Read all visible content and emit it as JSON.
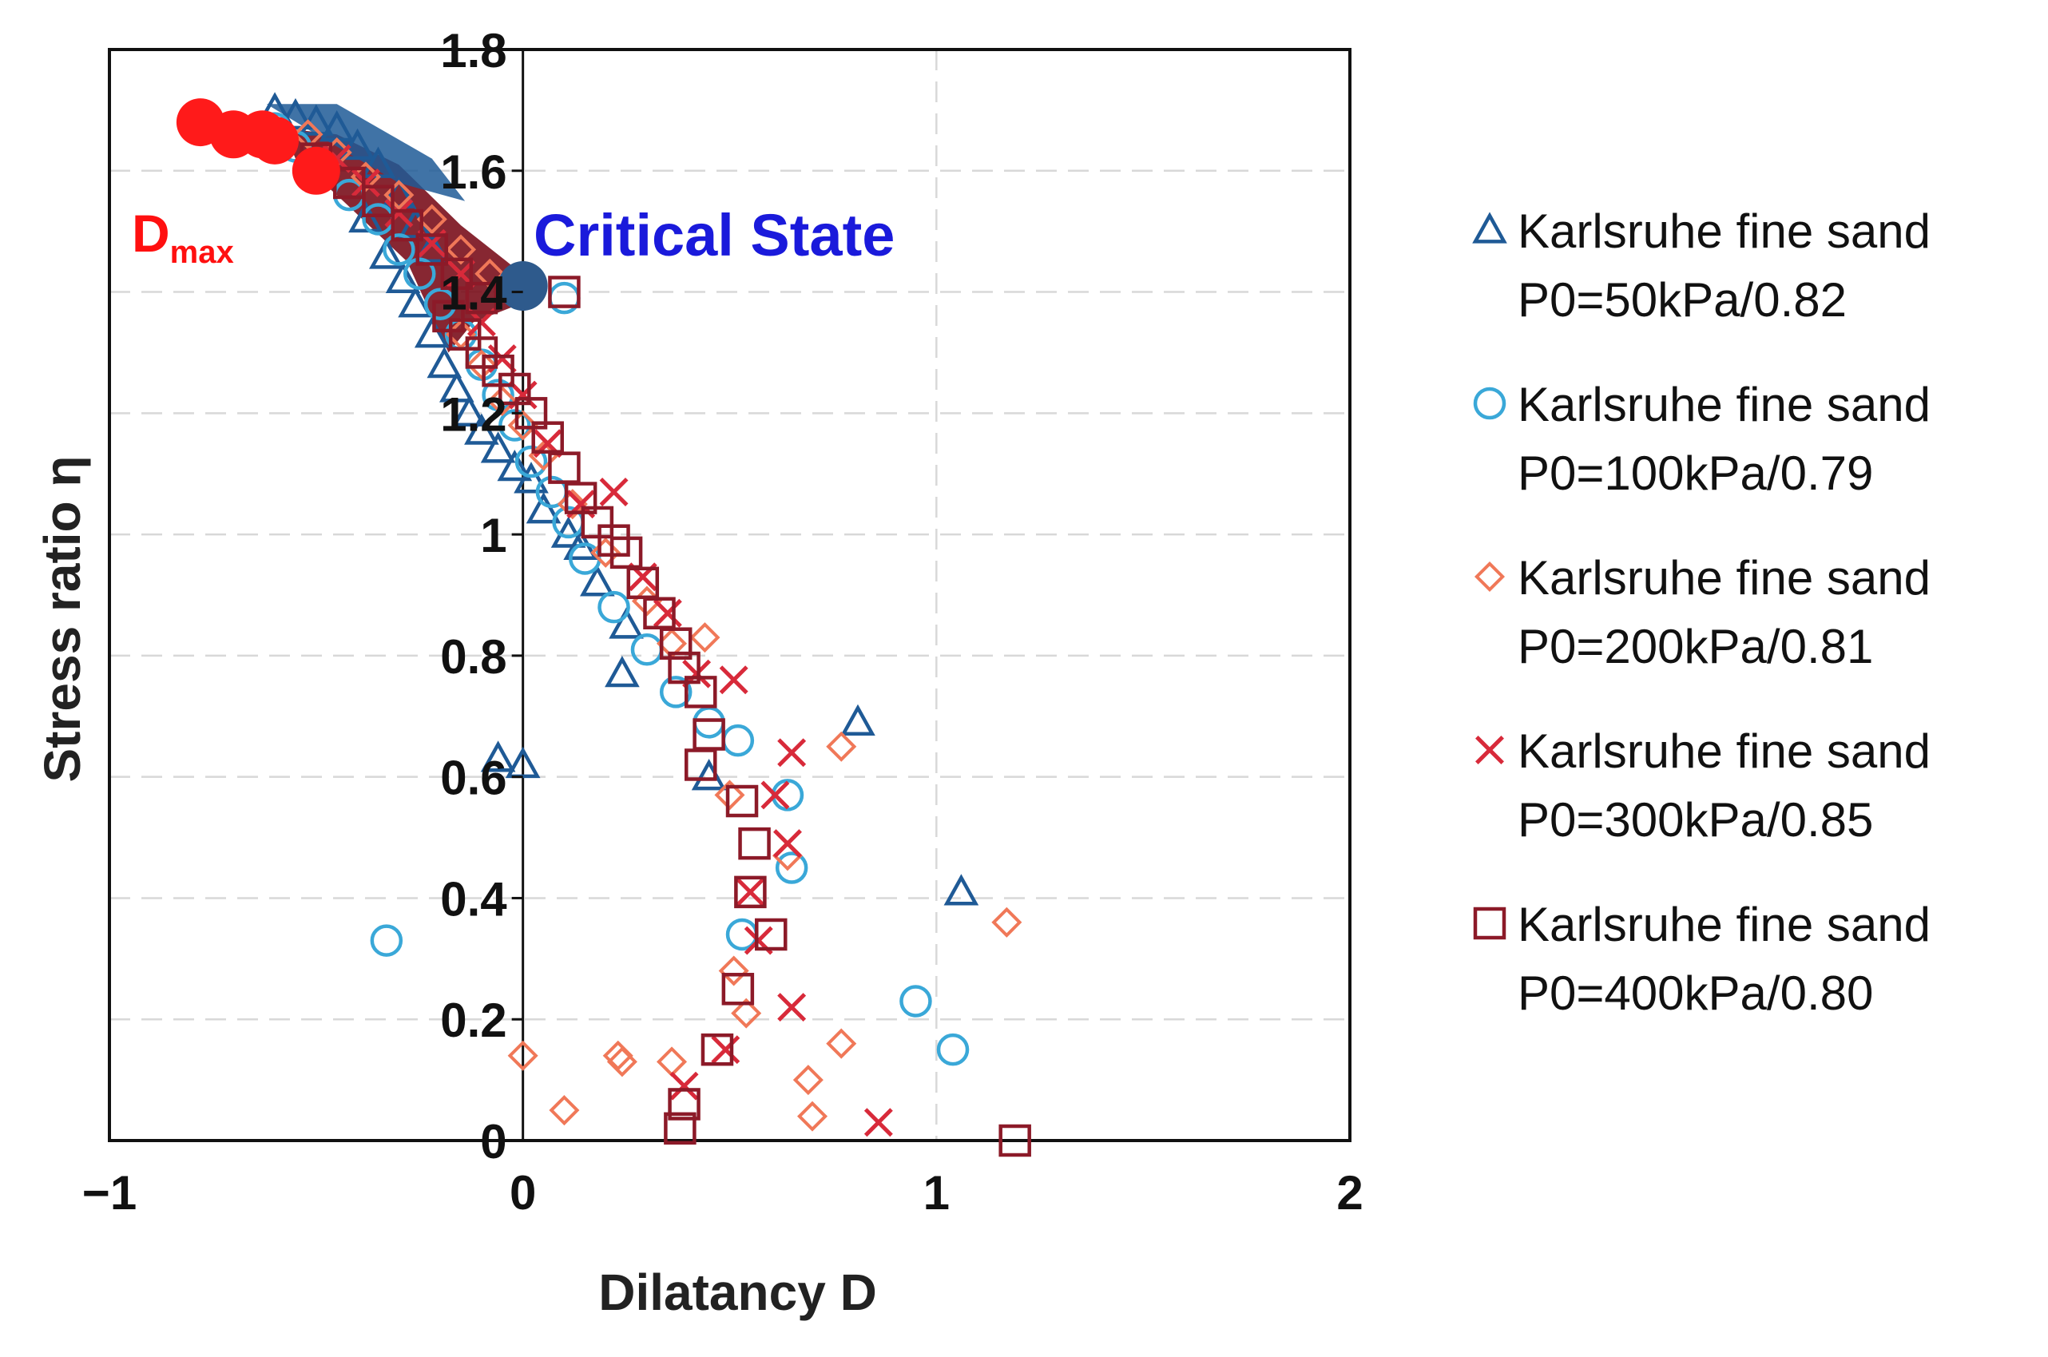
{
  "chart_data": {
    "type": "scatter",
    "title": "",
    "xlabel": "Dilatancy D",
    "ylabel": "Stress ratio η",
    "xlim": [
      -1,
      2
    ],
    "ylim": [
      0,
      1.8
    ],
    "x_ticks": [
      -1,
      0,
      1,
      2
    ],
    "x_tick_labels": [
      "−1",
      "0",
      "1",
      "2"
    ],
    "y_ticks": [
      0,
      0.2,
      0.4,
      0.6,
      0.8,
      1,
      1.2,
      1.4,
      1.6,
      1.8
    ],
    "y_tick_labels": [
      "0",
      "0.2",
      "0.4",
      "0.6",
      "0.8",
      "1",
      "1.2",
      "1.4",
      "1.6",
      "1.8"
    ],
    "grid": "dashed vertical and horizontal at ticks",
    "legend_position": "right",
    "annotations": [
      {
        "label": "D",
        "subscript": "max",
        "color": "#ff1010"
      },
      {
        "label": "Critical State",
        "color": "#1a1adb"
      }
    ],
    "highlight_points": [
      {
        "name": "Dmax",
        "color": "#ff1a1a",
        "points": [
          [
            -0.78,
            1.68
          ],
          [
            -0.7,
            1.66
          ],
          [
            -0.63,
            1.66
          ],
          [
            -0.6,
            1.65
          ],
          [
            -0.5,
            1.6
          ]
        ]
      },
      {
        "name": "Critical State",
        "color": "#2e5a8c",
        "points": [
          [
            0.0,
            1.41
          ]
        ]
      }
    ],
    "series": [
      {
        "name": "Karlsruhe fine sand",
        "condition": "P0=50kPa/0.82",
        "marker": "triangle",
        "color": "#1f5a96",
        "points": [
          [
            -0.6,
            1.7
          ],
          [
            -0.55,
            1.69
          ],
          [
            -0.5,
            1.68
          ],
          [
            -0.45,
            1.67
          ],
          [
            -0.4,
            1.64
          ],
          [
            -0.35,
            1.61
          ],
          [
            -0.3,
            1.56
          ],
          [
            -0.26,
            1.51
          ],
          [
            -0.22,
            1.47
          ],
          [
            -0.38,
            1.52
          ],
          [
            -0.33,
            1.46
          ],
          [
            -0.29,
            1.42
          ],
          [
            -0.26,
            1.38
          ],
          [
            -0.22,
            1.33
          ],
          [
            -0.19,
            1.28
          ],
          [
            -0.16,
            1.24
          ],
          [
            -0.13,
            1.2
          ],
          [
            -0.1,
            1.17
          ],
          [
            -0.06,
            1.14
          ],
          [
            -0.02,
            1.11
          ],
          [
            0.02,
            1.09
          ],
          [
            0.05,
            1.04
          ],
          [
            0.11,
            1.0
          ],
          [
            0.14,
            0.98
          ],
          [
            0.18,
            0.92
          ],
          [
            0.25,
            0.85
          ],
          [
            0.24,
            0.77
          ],
          [
            -0.06,
            0.63
          ],
          [
            0.0,
            0.62
          ],
          [
            0.45,
            0.6
          ],
          [
            0.81,
            0.69
          ],
          [
            1.06,
            0.41
          ]
        ]
      },
      {
        "name": "Karlsruhe fine sand",
        "condition": "P0=100kPa/0.79",
        "marker": "circle",
        "color": "#3aa8d8",
        "points": [
          [
            -0.6,
            1.67
          ],
          [
            -0.55,
            1.64
          ],
          [
            -0.5,
            1.6
          ],
          [
            -0.42,
            1.56
          ],
          [
            -0.35,
            1.52
          ],
          [
            -0.3,
            1.47
          ],
          [
            -0.25,
            1.43
          ],
          [
            -0.2,
            1.38
          ],
          [
            -0.15,
            1.33
          ],
          [
            -0.1,
            1.28
          ],
          [
            -0.06,
            1.23
          ],
          [
            -0.02,
            1.18
          ],
          [
            0.02,
            1.12
          ],
          [
            0.07,
            1.07
          ],
          [
            0.11,
            1.02
          ],
          [
            0.15,
            0.96
          ],
          [
            0.22,
            0.88
          ],
          [
            0.3,
            0.81
          ],
          [
            0.37,
            0.74
          ],
          [
            0.45,
            0.69
          ],
          [
            0.52,
            0.66
          ],
          [
            0.64,
            0.57
          ],
          [
            0.65,
            0.45
          ],
          [
            0.53,
            0.34
          ],
          [
            -0.33,
            0.33
          ],
          [
            0.95,
            0.23
          ],
          [
            1.04,
            0.15
          ],
          [
            0.1,
            1.39
          ]
        ]
      },
      {
        "name": "Karlsruhe fine sand",
        "condition": "P0=200kPa/0.81",
        "marker": "diamond",
        "color": "#f07858",
        "points": [
          [
            -0.52,
            1.66
          ],
          [
            -0.45,
            1.63
          ],
          [
            -0.38,
            1.59
          ],
          [
            -0.3,
            1.56
          ],
          [
            -0.22,
            1.52
          ],
          [
            -0.15,
            1.47
          ],
          [
            -0.08,
            1.43
          ],
          [
            -0.15,
            1.33
          ],
          [
            -0.1,
            1.28
          ],
          [
            -0.05,
            1.22
          ],
          [
            0.0,
            1.18
          ],
          [
            0.05,
            1.13
          ],
          [
            0.12,
            1.05
          ],
          [
            0.2,
            0.97
          ],
          [
            0.3,
            0.89
          ],
          [
            0.36,
            0.82
          ],
          [
            0.44,
            0.83
          ],
          [
            0.5,
            0.57
          ],
          [
            0.77,
            0.65
          ],
          [
            0.64,
            0.47
          ],
          [
            0.51,
            0.28
          ],
          [
            0.54,
            0.21
          ],
          [
            0.0,
            0.14
          ],
          [
            0.23,
            0.14
          ],
          [
            0.24,
            0.13
          ],
          [
            0.36,
            0.13
          ],
          [
            0.1,
            0.05
          ],
          [
            0.69,
            0.1
          ],
          [
            0.7,
            0.04
          ],
          [
            0.77,
            0.16
          ],
          [
            1.17,
            0.36
          ]
        ]
      },
      {
        "name": "Karlsruhe fine sand",
        "condition": "P0=300kPa/0.85",
        "marker": "cross",
        "color": "#d82a3a",
        "points": [
          [
            -0.45,
            1.62
          ],
          [
            -0.38,
            1.58
          ],
          [
            -0.3,
            1.53
          ],
          [
            -0.22,
            1.48
          ],
          [
            -0.15,
            1.43
          ],
          [
            -0.1,
            1.35
          ],
          [
            -0.05,
            1.29
          ],
          [
            0.0,
            1.23
          ],
          [
            0.06,
            1.15
          ],
          [
            0.14,
            1.05
          ],
          [
            0.22,
            1.07
          ],
          [
            0.29,
            0.93
          ],
          [
            0.35,
            0.87
          ],
          [
            0.42,
            0.77
          ],
          [
            0.51,
            0.76
          ],
          [
            0.65,
            0.64
          ],
          [
            0.61,
            0.57
          ],
          [
            0.64,
            0.49
          ],
          [
            0.55,
            0.41
          ],
          [
            0.57,
            0.33
          ],
          [
            0.65,
            0.22
          ],
          [
            0.49,
            0.15
          ],
          [
            0.39,
            0.09
          ],
          [
            0.86,
            0.03
          ]
        ]
      },
      {
        "name": "Karlsruhe fine sand",
        "condition": "P0=400kPa/0.80",
        "marker": "square",
        "color": "#8c1a28",
        "points": [
          [
            -0.5,
            1.62
          ],
          [
            -0.42,
            1.58
          ],
          [
            -0.35,
            1.55
          ],
          [
            -0.28,
            1.51
          ],
          [
            -0.22,
            1.47
          ],
          [
            -0.16,
            1.43
          ],
          [
            -0.1,
            1.39
          ],
          [
            -0.18,
            1.36
          ],
          [
            -0.14,
            1.33
          ],
          [
            -0.1,
            1.3
          ],
          [
            -0.06,
            1.27
          ],
          [
            -0.02,
            1.24
          ],
          [
            0.02,
            1.2
          ],
          [
            0.06,
            1.16
          ],
          [
            0.1,
            1.11
          ],
          [
            0.14,
            1.06
          ],
          [
            0.18,
            1.02
          ],
          [
            0.22,
            0.99
          ],
          [
            0.25,
            0.97
          ],
          [
            0.29,
            0.92
          ],
          [
            0.33,
            0.87
          ],
          [
            0.37,
            0.82
          ],
          [
            0.39,
            0.78
          ],
          [
            0.43,
            0.74
          ],
          [
            0.45,
            0.67
          ],
          [
            0.43,
            0.62
          ],
          [
            0.53,
            0.56
          ],
          [
            0.56,
            0.49
          ],
          [
            0.55,
            0.41
          ],
          [
            0.6,
            0.34
          ],
          [
            0.52,
            0.25
          ],
          [
            0.47,
            0.15
          ],
          [
            0.39,
            0.06
          ],
          [
            0.38,
            0.02
          ],
          [
            1.19,
            0.0
          ],
          [
            0.1,
            1.4
          ]
        ]
      }
    ]
  }
}
